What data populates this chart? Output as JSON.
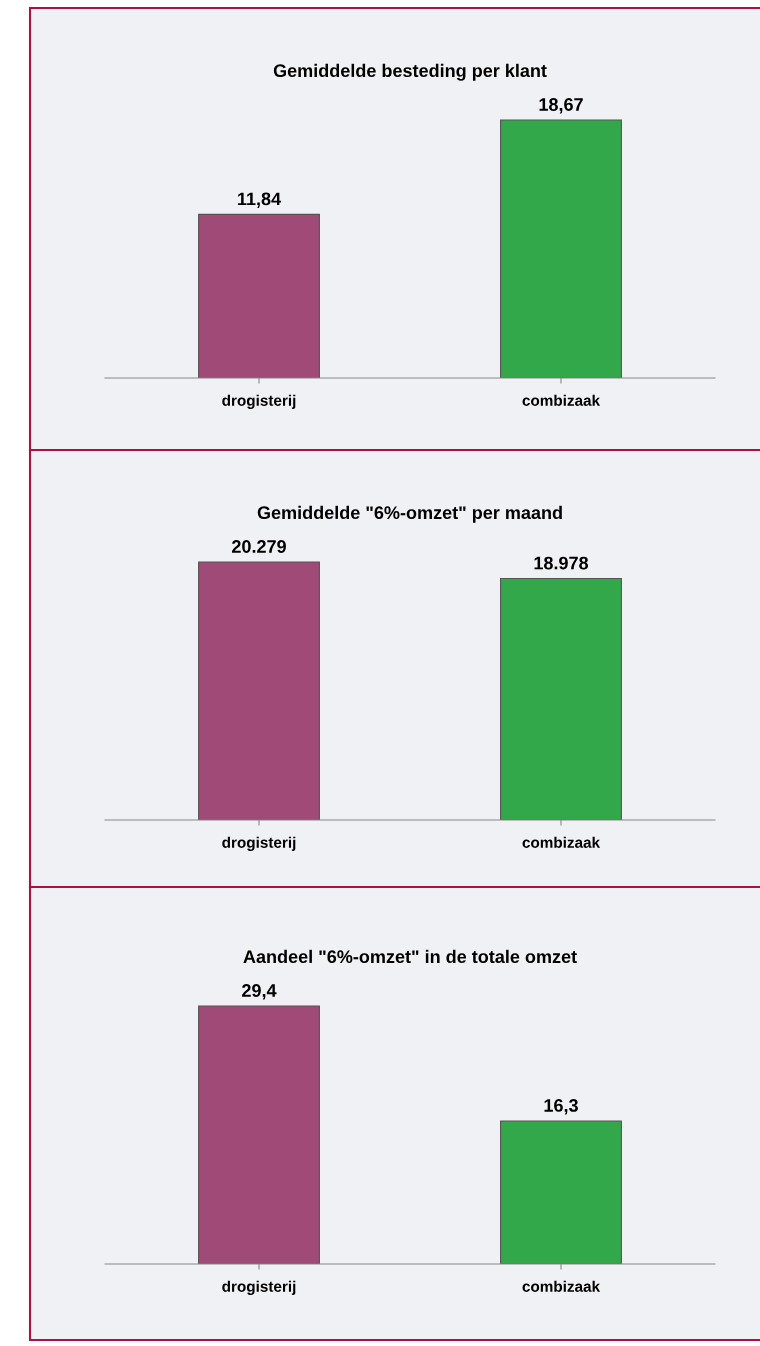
{
  "chart_data": [
    {
      "type": "bar",
      "title": "Gemiddelde besteding per klant",
      "categories": [
        "drogisterij",
        "combizaak"
      ],
      "values": [
        11.84,
        18.67
      ],
      "value_labels": [
        "11,84",
        "18,67"
      ],
      "colors": [
        "#a04a78",
        "#33a84a"
      ]
    },
    {
      "type": "bar",
      "title": "Gemiddelde \"6%-omzet\" per maand",
      "categories": [
        "drogisterij",
        "combizaak"
      ],
      "values": [
        20279,
        18978
      ],
      "value_labels": [
        "20.279",
        "18.978"
      ],
      "colors": [
        "#a04a78",
        "#33a84a"
      ]
    },
    {
      "type": "bar",
      "title": "Aandeel \"6%-omzet\" in de totale omzet",
      "categories": [
        "drogisterij",
        "combizaak"
      ],
      "values": [
        29.4,
        16.3
      ],
      "value_labels": [
        "29,4",
        "16,3"
      ],
      "colors": [
        "#a04a78",
        "#33a84a"
      ]
    }
  ]
}
